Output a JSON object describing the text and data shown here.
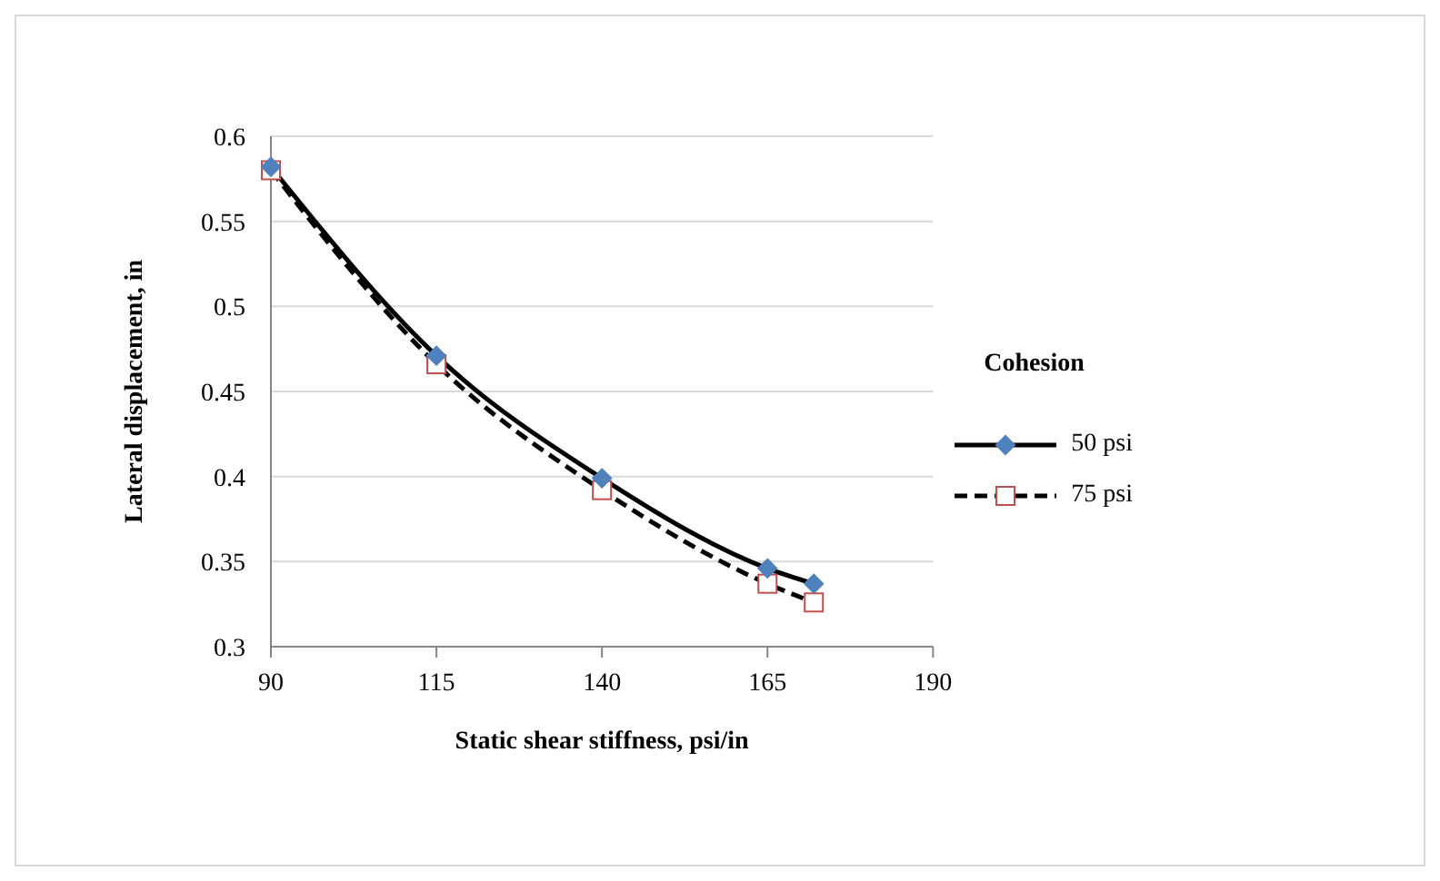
{
  "chart_data": {
    "type": "line",
    "xlabel": "Static shear stiffness, psi/in",
    "ylabel": "Lateral displacement, in",
    "legend_title": "Cohesion",
    "x": [
      90,
      115,
      140,
      165,
      172
    ],
    "series": [
      {
        "name": "50 psi",
        "color": "#4f81bd",
        "marker": "diamond",
        "line_style": "solid",
        "values": [
          0.582,
          0.471,
          0.399,
          0.346,
          0.337
        ]
      },
      {
        "name": "75 psi",
        "color": "#c0504d",
        "marker": "square",
        "line_style": "dashed",
        "values": [
          0.58,
          0.466,
          0.392,
          0.337,
          0.326
        ]
      }
    ],
    "xlim": [
      90,
      190
    ],
    "xticks": [
      90,
      115,
      140,
      165,
      190
    ],
    "ylim": [
      0.3,
      0.6
    ],
    "yticks": [
      0.3,
      0.35,
      0.4,
      0.45,
      0.5,
      0.55,
      0.6
    ],
    "grid": "y",
    "legend": "right"
  }
}
